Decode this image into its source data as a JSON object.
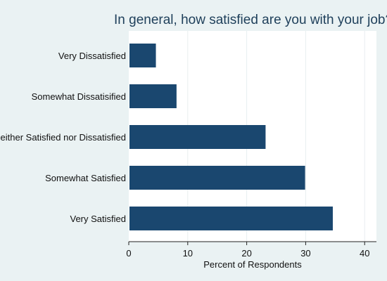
{
  "chart_data": {
    "type": "bar",
    "orientation": "horizontal",
    "title": "In general, how satisfied are you with your job?",
    "categories": [
      "Very Dissatisfied",
      "Somewhat Dissatisified",
      "Neither Satisfied nor Dissatisfied",
      "Somewhat Satisfied",
      "Very Satisfied"
    ],
    "values": [
      4.6,
      8.1,
      23.2,
      29.9,
      34.6
    ],
    "xlabel": "Percent of Respondents",
    "ylabel": "",
    "xlim": [
      0,
      42
    ],
    "xticks": [
      0,
      10,
      20,
      30,
      40
    ],
    "grid": "vertical",
    "colors": {
      "background": "#eaf2f3",
      "plot_background": "#ffffff",
      "bar": "#1a476f",
      "title": "#1e3f5a",
      "grid": "#e8eef0"
    }
  }
}
